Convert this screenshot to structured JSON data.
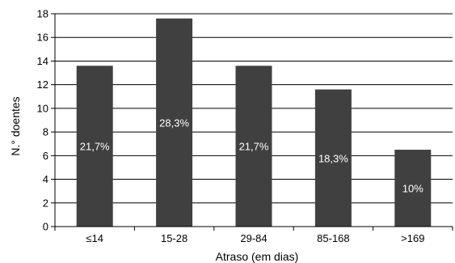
{
  "chart_data": {
    "type": "bar",
    "categories": [
      "≤14",
      "15-28",
      "29-84",
      "85-168",
      ">169"
    ],
    "values": [
      13.6,
      17.6,
      13.6,
      11.6,
      6.5
    ],
    "data_labels": [
      "21,7%",
      "28,3%",
      "21,7%",
      "18,3%",
      "10%"
    ],
    "xlabel": "Atraso (em dias)",
    "ylabel": "N.° doentes",
    "ylim": [
      0,
      18
    ],
    "yticks": [
      0,
      2,
      4,
      6,
      8,
      10,
      12,
      14,
      16,
      18
    ],
    "grid": true,
    "bar_color": "#404040"
  }
}
